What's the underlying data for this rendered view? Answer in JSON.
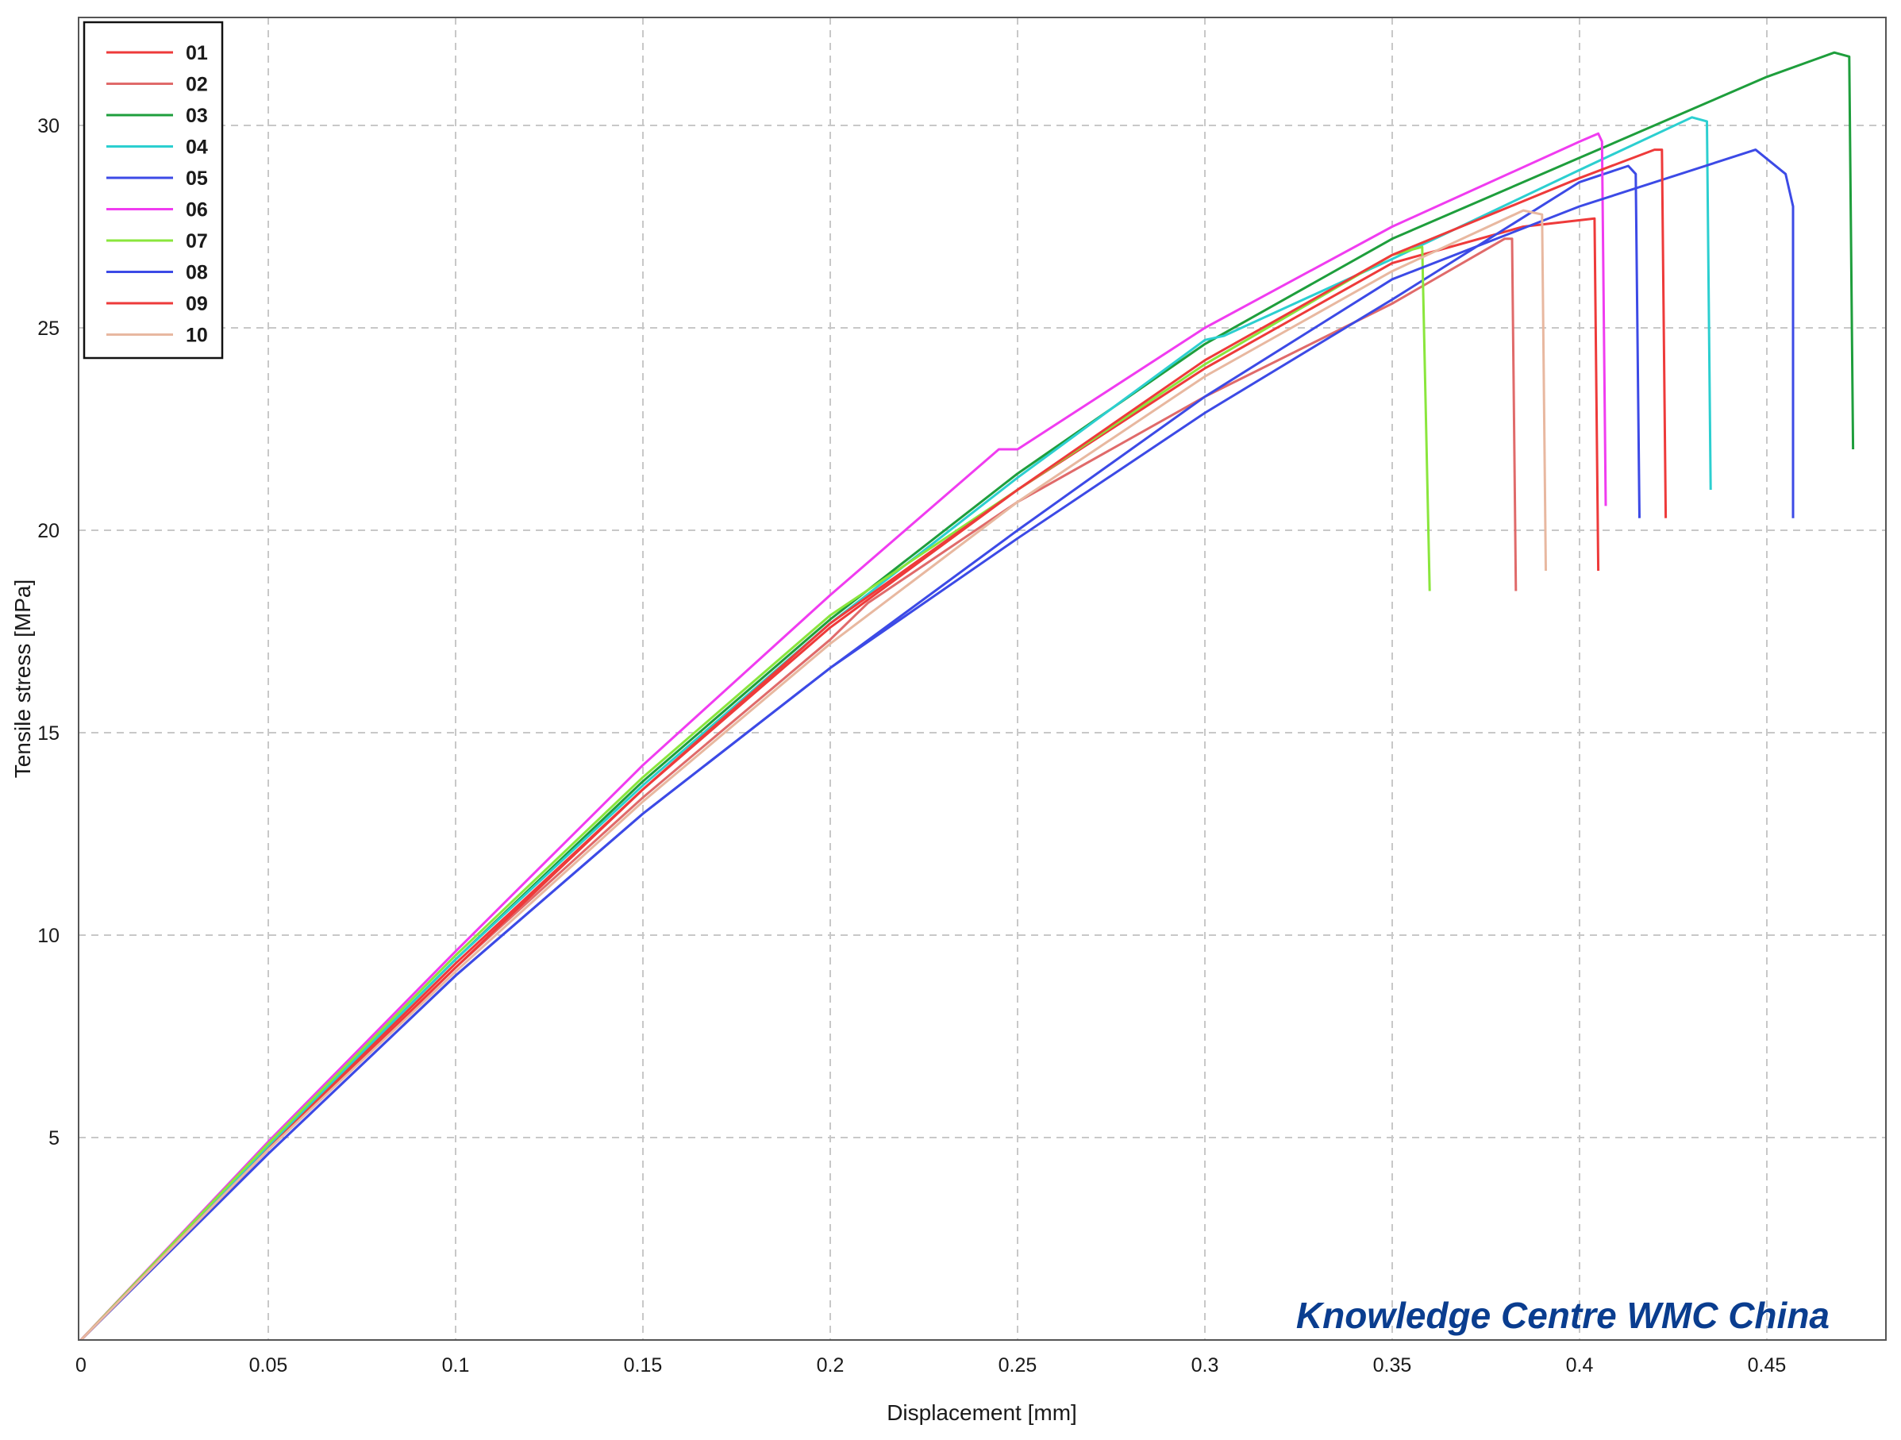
{
  "chart_data": {
    "type": "line",
    "title": "",
    "xlabel": "Displacement [mm]",
    "ylabel": "Tensile stress [MPa]",
    "xlim": [
      0,
      0.48
    ],
    "ylim": [
      0,
      32.8
    ],
    "xticks": [
      0,
      0.05,
      0.1,
      0.15,
      0.2,
      0.25,
      0.3,
      0.35,
      0.4,
      0.45
    ],
    "xtick_labels": [
      "0",
      "0.05",
      "0.1",
      "0.15",
      "0.2",
      "0.25",
      "0.3",
      "0.35",
      "0.4",
      "0.45"
    ],
    "yticks": [
      5,
      10,
      15,
      20,
      25,
      30
    ],
    "ytick_labels": [
      "5",
      "10",
      "15",
      "20",
      "25",
      "30"
    ],
    "grid": true,
    "legend_position": "top-left",
    "watermark": "Knowledge Centre WMC China",
    "series": [
      {
        "name": "01",
        "color": "#ee3a3a",
        "points": [
          [
            0,
            0
          ],
          [
            0.05,
            4.75
          ],
          [
            0.1,
            9.3
          ],
          [
            0.15,
            13.6
          ],
          [
            0.2,
            17.6
          ],
          [
            0.25,
            21
          ],
          [
            0.3,
            24
          ],
          [
            0.35,
            26.6
          ],
          [
            0.385,
            27.5
          ],
          [
            0.404,
            27.7
          ],
          [
            0.405,
            19
          ]
        ]
      },
      {
        "name": "02",
        "color": "#e06a6a",
        "points": [
          [
            0,
            0
          ],
          [
            0.05,
            4.7
          ],
          [
            0.1,
            9.2
          ],
          [
            0.15,
            13.4
          ],
          [
            0.2,
            17.3
          ],
          [
            0.21,
            18.2
          ],
          [
            0.25,
            20.7
          ],
          [
            0.3,
            23.3
          ],
          [
            0.35,
            25.6
          ],
          [
            0.38,
            27.2
          ],
          [
            0.382,
            27.2
          ],
          [
            0.383,
            18.5
          ]
        ]
      },
      {
        "name": "03",
        "color": "#1e9e3c",
        "points": [
          [
            0,
            0
          ],
          [
            0.05,
            4.8
          ],
          [
            0.1,
            9.4
          ],
          [
            0.15,
            13.8
          ],
          [
            0.2,
            17.8
          ],
          [
            0.25,
            21.4
          ],
          [
            0.3,
            24.6
          ],
          [
            0.35,
            27.2
          ],
          [
            0.4,
            29.2
          ],
          [
            0.45,
            31.2
          ],
          [
            0.468,
            31.8
          ],
          [
            0.472,
            31.7
          ],
          [
            0.473,
            22
          ]
        ]
      },
      {
        "name": "04",
        "color": "#2ccfd0",
        "points": [
          [
            0,
            0
          ],
          [
            0.05,
            4.8
          ],
          [
            0.1,
            9.4
          ],
          [
            0.15,
            13.7
          ],
          [
            0.2,
            17.7
          ],
          [
            0.25,
            21.3
          ],
          [
            0.3,
            24.7
          ],
          [
            0.305,
            24.8
          ],
          [
            0.35,
            26.7
          ],
          [
            0.4,
            28.9
          ],
          [
            0.43,
            30.2
          ],
          [
            0.434,
            30.1
          ],
          [
            0.435,
            21
          ]
        ]
      },
      {
        "name": "05",
        "color": "#3c4ae6",
        "points": [
          [
            0,
            0
          ],
          [
            0.05,
            4.6
          ],
          [
            0.1,
            9
          ],
          [
            0.15,
            13
          ],
          [
            0.2,
            16.6
          ],
          [
            0.25,
            19.8
          ],
          [
            0.3,
            22.9
          ],
          [
            0.35,
            25.7
          ],
          [
            0.4,
            28.6
          ],
          [
            0.413,
            29
          ],
          [
            0.415,
            28.8
          ],
          [
            0.416,
            20.3
          ]
        ]
      },
      {
        "name": "06",
        "color": "#f03cf0",
        "points": [
          [
            0,
            0
          ],
          [
            0.05,
            4.9
          ],
          [
            0.1,
            9.6
          ],
          [
            0.15,
            14.2
          ],
          [
            0.2,
            18.4
          ],
          [
            0.245,
            22
          ],
          [
            0.25,
            22
          ],
          [
            0.3,
            25
          ],
          [
            0.35,
            27.5
          ],
          [
            0.4,
            29.6
          ],
          [
            0.405,
            29.8
          ],
          [
            0.406,
            29.6
          ],
          [
            0.407,
            20.6
          ]
        ]
      },
      {
        "name": "07",
        "color": "#8ae63c",
        "points": [
          [
            0,
            0
          ],
          [
            0.05,
            4.85
          ],
          [
            0.1,
            9.5
          ],
          [
            0.15,
            13.9
          ],
          [
            0.2,
            17.9
          ],
          [
            0.25,
            21
          ],
          [
            0.3,
            24.1
          ],
          [
            0.35,
            26.8
          ],
          [
            0.358,
            27
          ],
          [
            0.36,
            18.5
          ]
        ]
      },
      {
        "name": "08",
        "color": "#3c4ae6",
        "points": [
          [
            0,
            0
          ],
          [
            0.05,
            4.6
          ],
          [
            0.1,
            9
          ],
          [
            0.15,
            13
          ],
          [
            0.2,
            16.6
          ],
          [
            0.25,
            20
          ],
          [
            0.3,
            23.3
          ],
          [
            0.35,
            26.2
          ],
          [
            0.4,
            28
          ],
          [
            0.447,
            29.4
          ],
          [
            0.455,
            28.8
          ],
          [
            0.457,
            28
          ],
          [
            0.457,
            20.3
          ]
        ]
      },
      {
        "name": "09",
        "color": "#ee3a3a",
        "points": [
          [
            0,
            0
          ],
          [
            0.05,
            4.7
          ],
          [
            0.1,
            9.2
          ],
          [
            0.15,
            13.6
          ],
          [
            0.2,
            17.7
          ],
          [
            0.25,
            21
          ],
          [
            0.3,
            24.2
          ],
          [
            0.35,
            26.8
          ],
          [
            0.4,
            28.7
          ],
          [
            0.42,
            29.4
          ],
          [
            0.422,
            29.4
          ],
          [
            0.423,
            20.3
          ]
        ]
      },
      {
        "name": "10",
        "color": "#e8b8a0",
        "points": [
          [
            0,
            0
          ],
          [
            0.05,
            4.7
          ],
          [
            0.1,
            9.1
          ],
          [
            0.15,
            13.3
          ],
          [
            0.2,
            17.2
          ],
          [
            0.25,
            20.7
          ],
          [
            0.3,
            23.8
          ],
          [
            0.35,
            26.4
          ],
          [
            0.385,
            27.9
          ],
          [
            0.39,
            27.8
          ],
          [
            0.391,
            19
          ]
        ]
      }
    ]
  }
}
